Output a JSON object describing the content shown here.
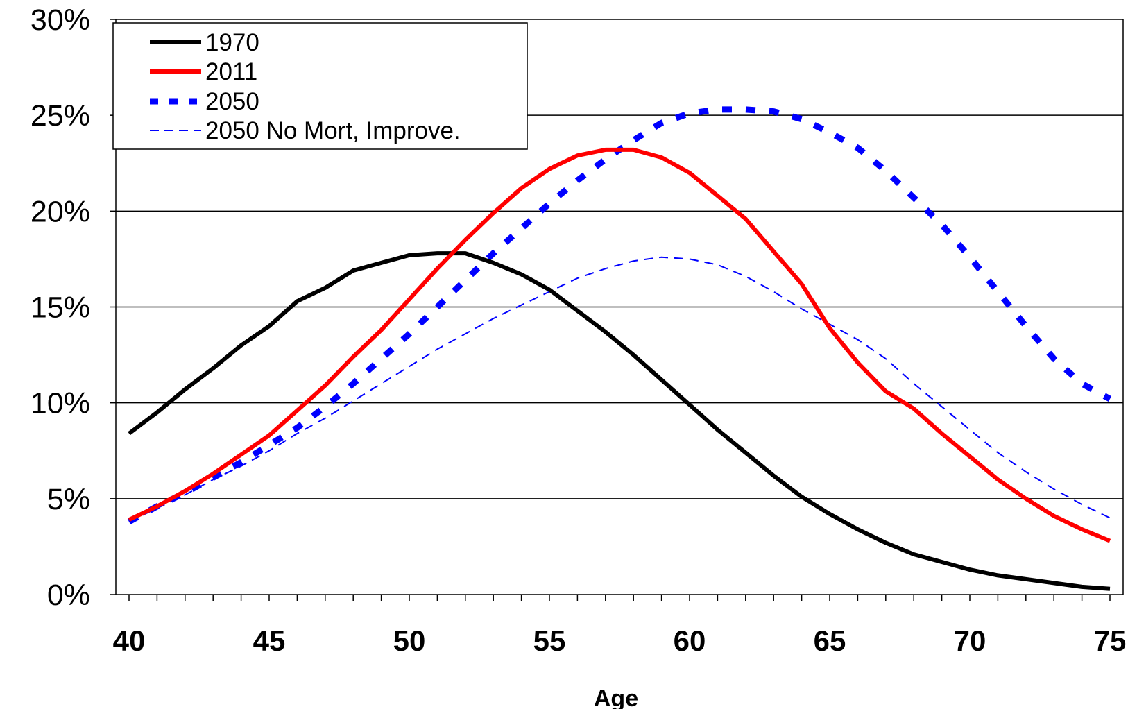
{
  "chart_data": {
    "type": "line",
    "xlabel": "Age",
    "ylabel": "",
    "title": "",
    "xlim": [
      40,
      75
    ],
    "ylim": [
      0,
      30
    ],
    "x_ticks": [
      40,
      45,
      50,
      55,
      60,
      65,
      70,
      75
    ],
    "x_tick_labels": [
      "40",
      "45",
      "50",
      "55",
      "60",
      "65",
      "70",
      "75"
    ],
    "y_ticks": [
      0,
      5,
      10,
      15,
      20,
      25,
      30
    ],
    "y_tick_labels": [
      "0%",
      "5%",
      "10%",
      "15%",
      "20%",
      "25%",
      "30%"
    ],
    "grid": "horizontal",
    "legend_position": "top-left",
    "x": [
      40,
      41,
      42,
      43,
      44,
      45,
      46,
      47,
      48,
      49,
      50,
      51,
      52,
      53,
      54,
      55,
      56,
      57,
      58,
      59,
      60,
      61,
      62,
      63,
      64,
      65,
      66,
      67,
      68,
      69,
      70,
      71,
      72,
      73,
      74,
      75
    ],
    "series": [
      {
        "name": "1970",
        "color": "#000000",
        "style": "solid-thick",
        "values": [
          8.4,
          9.5,
          10.7,
          11.8,
          13.0,
          14.0,
          15.3,
          16.0,
          16.9,
          17.3,
          17.7,
          17.8,
          17.8,
          17.3,
          16.7,
          15.9,
          14.8,
          13.7,
          12.5,
          11.2,
          9.9,
          8.6,
          7.4,
          6.2,
          5.1,
          4.2,
          3.4,
          2.7,
          2.1,
          1.7,
          1.3,
          1.0,
          0.8,
          0.6,
          0.4,
          0.3
        ]
      },
      {
        "name": "2011",
        "color": "#ff0000",
        "style": "solid-thick",
        "values": [
          3.9,
          4.6,
          5.4,
          6.3,
          7.3,
          8.3,
          9.6,
          10.9,
          12.4,
          13.8,
          15.4,
          17.0,
          18.5,
          19.9,
          21.2,
          22.2,
          22.9,
          23.2,
          23.2,
          22.8,
          22.0,
          20.8,
          19.6,
          17.9,
          16.2,
          13.9,
          12.1,
          10.6,
          9.7,
          8.4,
          7.2,
          6.0,
          5.0,
          4.1,
          3.4,
          2.8
        ]
      },
      {
        "name": "2050",
        "color": "#0000ff",
        "style": "dotted-thick",
        "values": [
          3.8,
          4.6,
          5.3,
          6.1,
          6.9,
          7.8,
          8.7,
          9.8,
          11.0,
          12.3,
          13.6,
          15.0,
          16.4,
          17.8,
          19.1,
          20.4,
          21.6,
          22.7,
          23.7,
          24.6,
          25.1,
          25.3,
          25.3,
          25.2,
          24.8,
          24.1,
          23.3,
          22.1,
          20.7,
          19.3,
          17.6,
          15.8,
          14.0,
          12.3,
          11.0,
          10.2
        ]
      },
      {
        "name": "2050 No Mort, Improve.",
        "color": "#0000ff",
        "style": "dashed-thin",
        "values": [
          3.8,
          4.5,
          5.2,
          6.0,
          6.7,
          7.5,
          8.4,
          9.2,
          10.1,
          11.0,
          11.9,
          12.8,
          13.6,
          14.4,
          15.1,
          15.8,
          16.5,
          17.0,
          17.4,
          17.6,
          17.5,
          17.2,
          16.6,
          15.8,
          14.9,
          14.1,
          13.3,
          12.3,
          11.0,
          9.8,
          8.6,
          7.4,
          6.4,
          5.5,
          4.7,
          4.0
        ]
      }
    ]
  }
}
